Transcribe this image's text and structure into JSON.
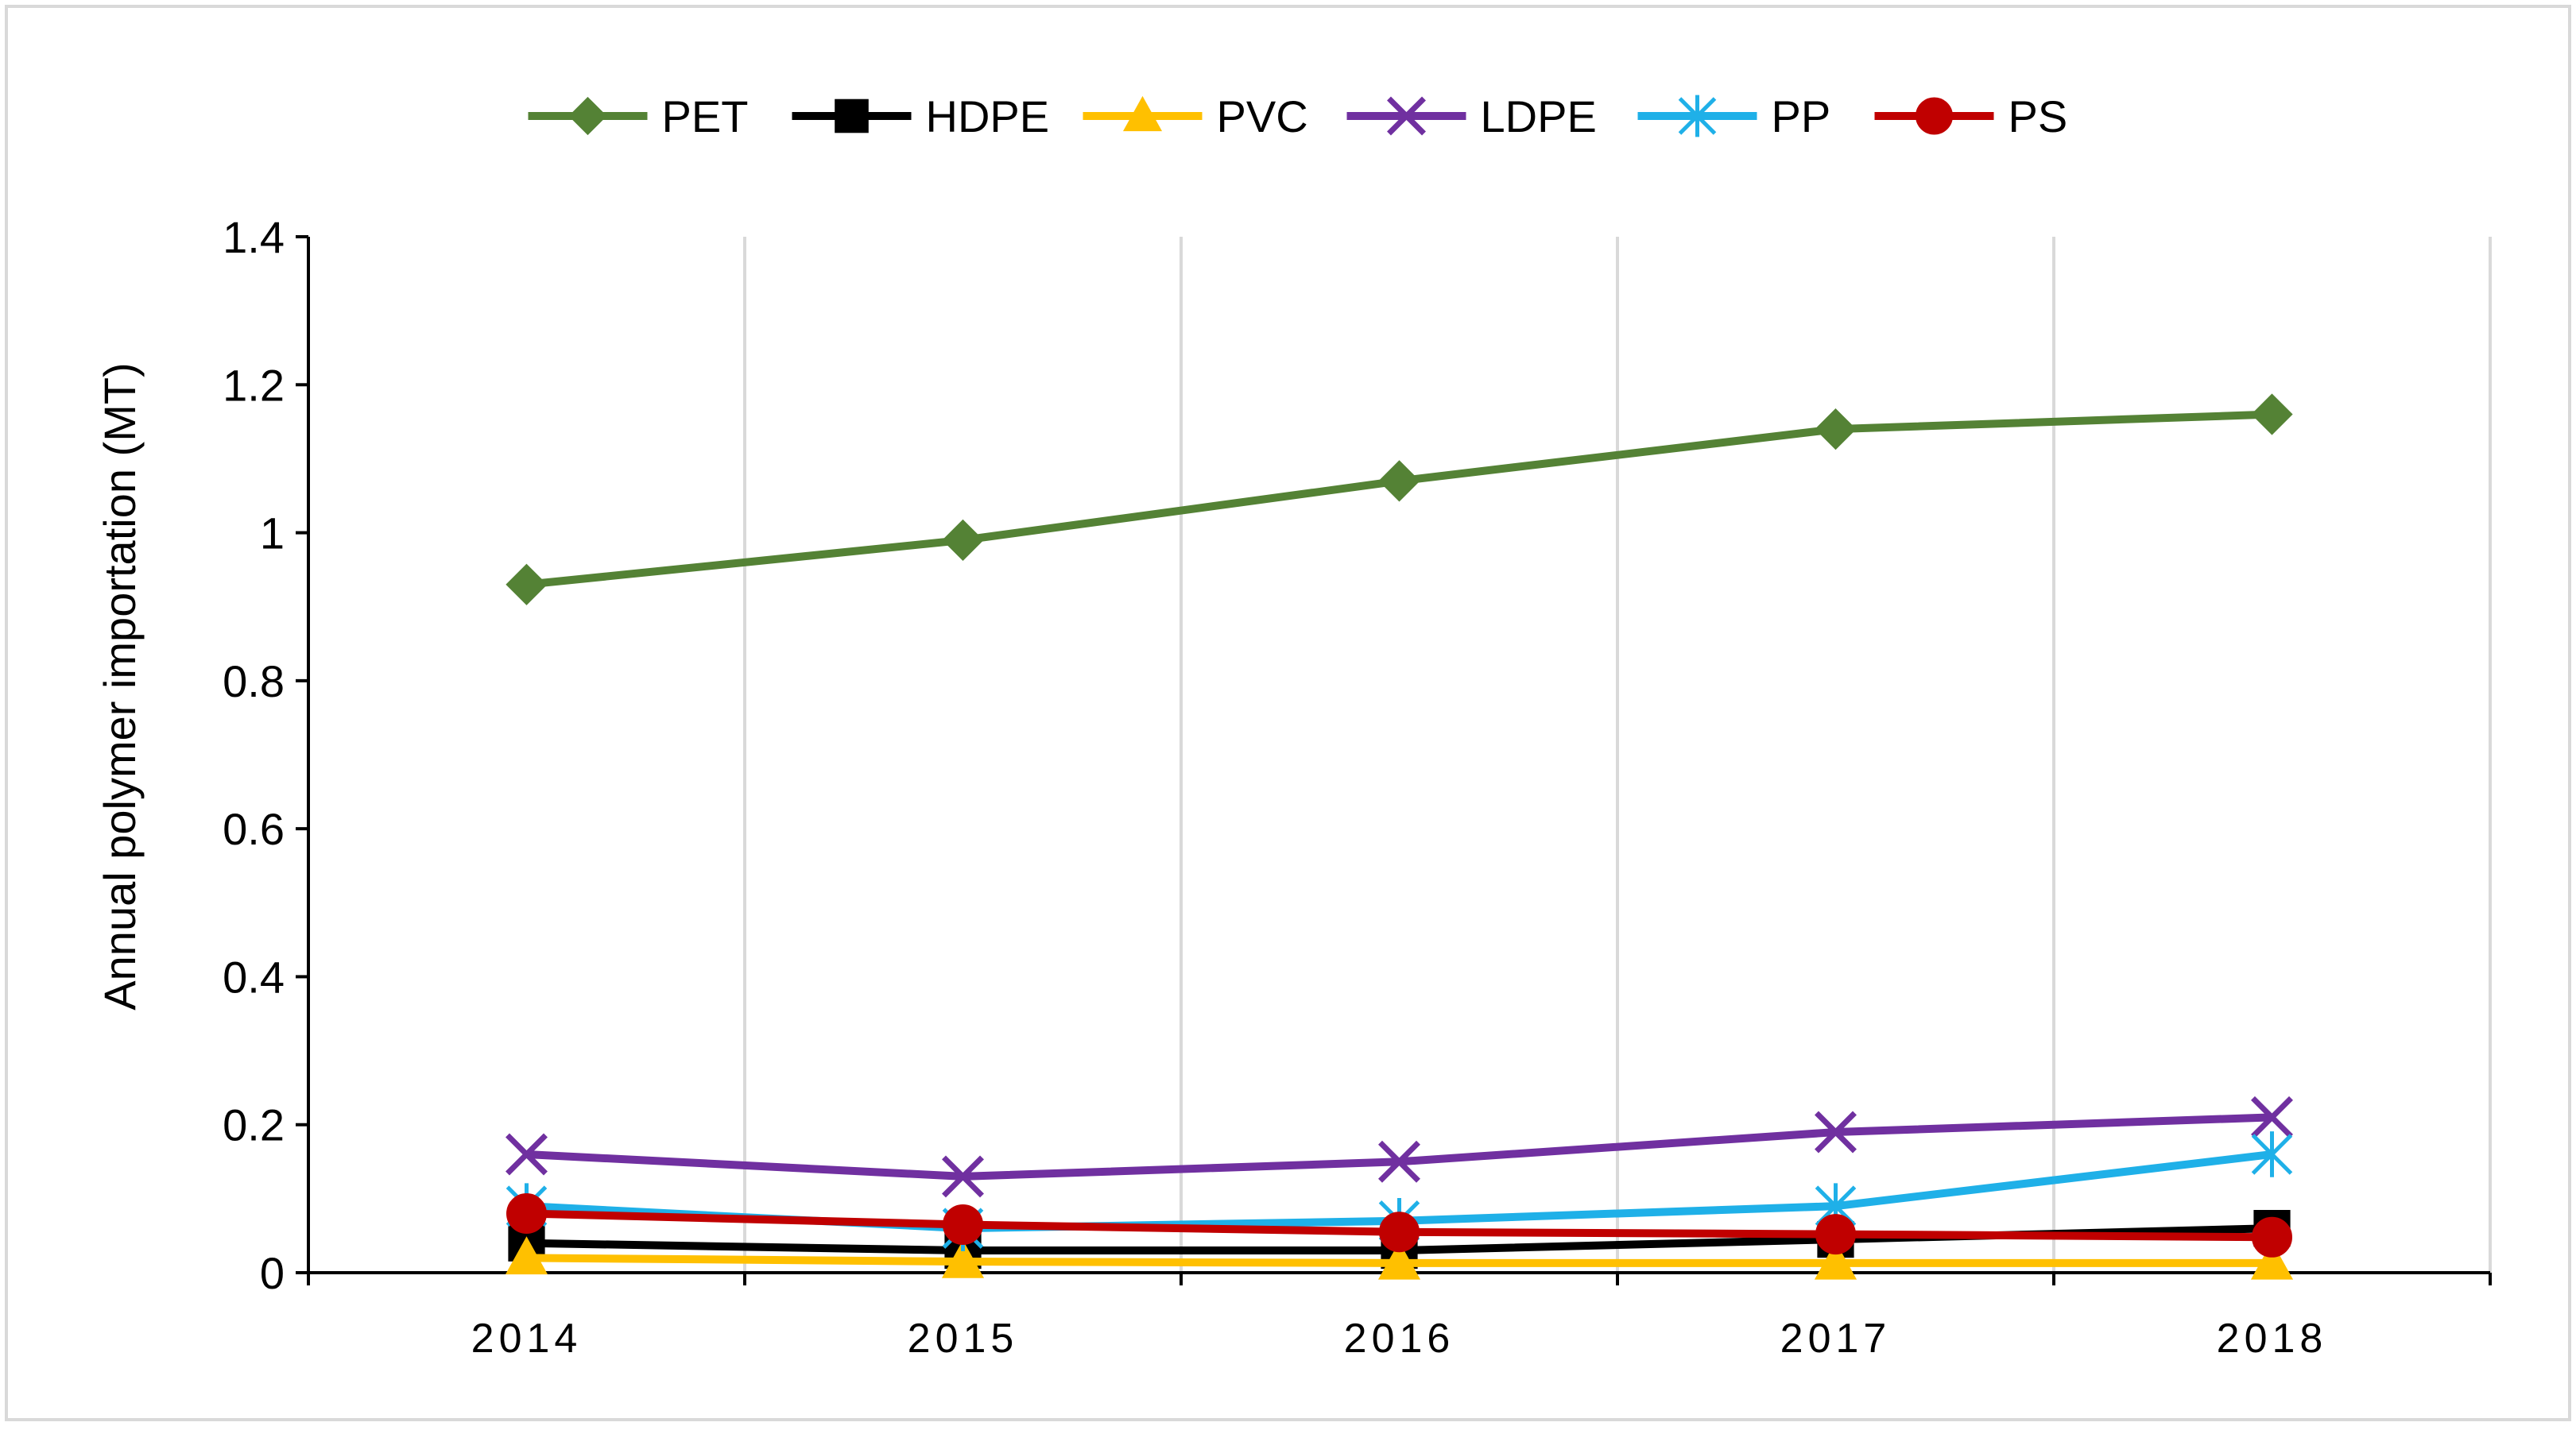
{
  "colors": {
    "frame": "#d9d9d9",
    "grid": "#d9d9d9",
    "axis": "#000000"
  },
  "chart_data": {
    "type": "line",
    "title": "",
    "xlabel": "",
    "ylabel": "Annual polymer importation (MT)",
    "categories": [
      "2014",
      "2015",
      "2016",
      "2017",
      "2018"
    ],
    "ylim": [
      0,
      1.4
    ],
    "yticks": [
      "0",
      "0.2",
      "0.4",
      "0.6",
      "0.8",
      "1",
      "1.2",
      "1.4"
    ],
    "ytick_values": [
      0,
      0.2,
      0.4,
      0.6,
      0.8,
      1.0,
      1.2,
      1.4
    ],
    "grid": "vertical",
    "legend_position": "top",
    "series": [
      {
        "name": "PET",
        "color": "#548235",
        "marker": "diamond",
        "values": [
          0.93,
          0.99,
          1.07,
          1.14,
          1.16
        ]
      },
      {
        "name": "HDPE",
        "color": "#000000",
        "marker": "square",
        "values": [
          0.04,
          0.03,
          0.03,
          0.045,
          0.06
        ]
      },
      {
        "name": "PVC",
        "color": "#ffc000",
        "marker": "triangle",
        "values": [
          0.02,
          0.015,
          0.013,
          0.013,
          0.013
        ]
      },
      {
        "name": "LDPE",
        "color": "#7030a0",
        "marker": "x",
        "values": [
          0.16,
          0.13,
          0.15,
          0.19,
          0.21
        ]
      },
      {
        "name": "PP",
        "color": "#1fb0e8",
        "marker": "asterisk",
        "values": [
          0.09,
          0.06,
          0.07,
          0.09,
          0.16
        ]
      },
      {
        "name": "PS",
        "color": "#c00000",
        "marker": "circle",
        "values": [
          0.08,
          0.065,
          0.055,
          0.052,
          0.048
        ]
      }
    ]
  }
}
